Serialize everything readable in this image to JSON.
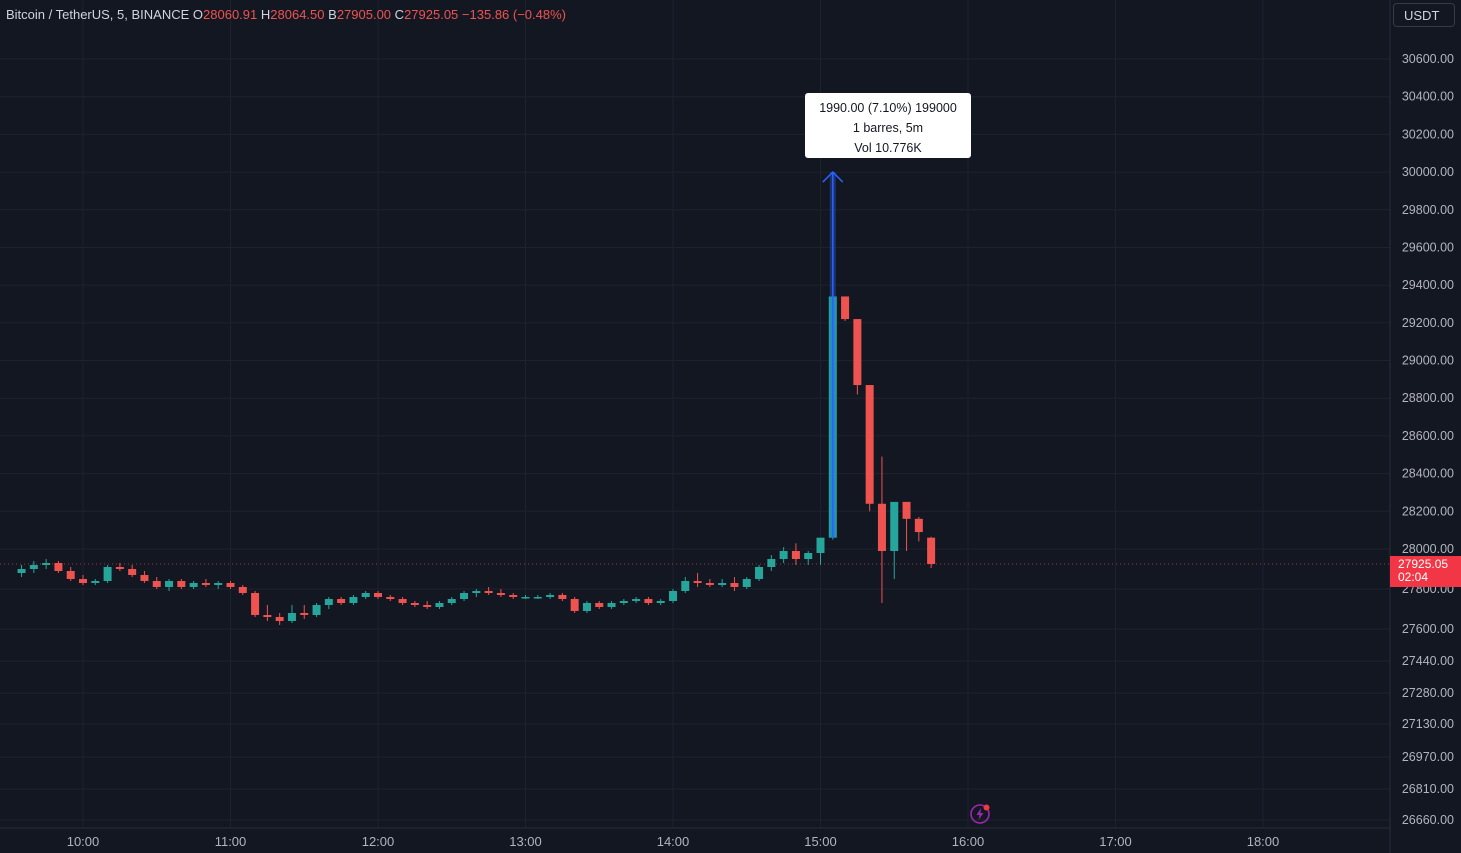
{
  "legend": {
    "symbol": "Bitcoin / TetherUS, 5, BINANCE",
    "o_label": "O",
    "o_value": "28060.91",
    "h_label": "H",
    "h_value": "28064.50",
    "b_label": "B",
    "b_value": "27905.00",
    "c_label": "C",
    "c_value": "27925.05",
    "change": "−135.86 (−0.48%)"
  },
  "currency": "USDT",
  "measure": {
    "line1": "1990.00 (7.10%) 199000",
    "line2": "1 barres, 5m",
    "line3": "Vol 10.776K"
  },
  "last_price": {
    "price": "27925.05",
    "countdown": "02:04"
  },
  "colors": {
    "up": "#26a69a",
    "down": "#ef5350",
    "measure": "#2962ff",
    "badge": "#f23645",
    "bg": "#131722",
    "grid": "#1e222d"
  },
  "icons": {
    "bolt": "lightning-bolt-icon"
  },
  "chart_data": {
    "type": "candlestick",
    "y_ticks": [
      "30600.00",
      "30400.00",
      "30200.00",
      "30000.00",
      "29800.00",
      "29600.00",
      "29400.00",
      "29200.00",
      "29000.00",
      "28800.00",
      "28600.00",
      "28400.00",
      "28200.00",
      "28000.00",
      "27800.00",
      "27600.00",
      "27440.00",
      "27280.00",
      "27130.00",
      "26970.00",
      "26810.00",
      "26660.00"
    ],
    "x_ticks": [
      "10:00",
      "11:00",
      "12:00",
      "13:00",
      "14:00",
      "15:00",
      "16:00",
      "17:00",
      "18:00"
    ],
    "grid": true,
    "candles": [
      [
        27880,
        27920,
        27860,
        27900
      ],
      [
        27900,
        27940,
        27880,
        27920
      ],
      [
        27920,
        27950,
        27900,
        27930
      ],
      [
        27930,
        27940,
        27880,
        27890
      ],
      [
        27890,
        27910,
        27840,
        27850
      ],
      [
        27850,
        27870,
        27820,
        27830
      ],
      [
        27830,
        27850,
        27820,
        27840
      ],
      [
        27840,
        27920,
        27830,
        27910
      ],
      [
        27910,
        27930,
        27890,
        27900
      ],
      [
        27900,
        27920,
        27860,
        27870
      ],
      [
        27870,
        27890,
        27830,
        27840
      ],
      [
        27840,
        27860,
        27800,
        27810
      ],
      [
        27810,
        27850,
        27790,
        27840
      ],
      [
        27840,
        27850,
        27800,
        27810
      ],
      [
        27810,
        27840,
        27800,
        27830
      ],
      [
        27830,
        27850,
        27810,
        27820
      ],
      [
        27820,
        27840,
        27800,
        27830
      ],
      [
        27830,
        27840,
        27800,
        27810
      ],
      [
        27810,
        27820,
        27770,
        27780
      ],
      [
        27780,
        27790,
        27660,
        27670
      ],
      [
        27670,
        27720,
        27640,
        27660
      ],
      [
        27660,
        27680,
        27620,
        27640
      ],
      [
        27640,
        27720,
        27630,
        27680
      ],
      [
        27680,
        27720,
        27650,
        27670
      ],
      [
        27670,
        27730,
        27660,
        27720
      ],
      [
        27720,
        27760,
        27700,
        27750
      ],
      [
        27750,
        27760,
        27720,
        27730
      ],
      [
        27730,
        27770,
        27720,
        27760
      ],
      [
        27760,
        27790,
        27750,
        27780
      ],
      [
        27780,
        27790,
        27750,
        27760
      ],
      [
        27760,
        27770,
        27740,
        27750
      ],
      [
        27750,
        27760,
        27720,
        27730
      ],
      [
        27730,
        27740,
        27710,
        27720
      ],
      [
        27720,
        27740,
        27700,
        27710
      ],
      [
        27710,
        27740,
        27700,
        27730
      ],
      [
        27730,
        27760,
        27720,
        27750
      ],
      [
        27750,
        27790,
        27740,
        27780
      ],
      [
        27780,
        27800,
        27760,
        27790
      ],
      [
        27790,
        27810,
        27770,
        27780
      ],
      [
        27780,
        27800,
        27760,
        27770
      ],
      [
        27770,
        27780,
        27750,
        27760
      ],
      [
        27760,
        27770,
        27750,
        27760
      ],
      [
        27760,
        27770,
        27750,
        27760
      ],
      [
        27760,
        27780,
        27750,
        27770
      ],
      [
        27770,
        27780,
        27740,
        27750
      ],
      [
        27750,
        27760,
        27680,
        27690
      ],
      [
        27690,
        27740,
        27680,
        27730
      ],
      [
        27730,
        27740,
        27700,
        27710
      ],
      [
        27710,
        27740,
        27700,
        27730
      ],
      [
        27730,
        27750,
        27720,
        27740
      ],
      [
        27740,
        27760,
        27730,
        27750
      ],
      [
        27750,
        27760,
        27720,
        27730
      ],
      [
        27730,
        27750,
        27720,
        27740
      ],
      [
        27740,
        27800,
        27730,
        27790
      ],
      [
        27790,
        27860,
        27780,
        27840
      ],
      [
        27840,
        27880,
        27810,
        27830
      ],
      [
        27830,
        27850,
        27810,
        27820
      ],
      [
        27820,
        27850,
        27810,
        27830
      ],
      [
        27830,
        27860,
        27790,
        27810
      ],
      [
        27810,
        27860,
        27800,
        27850
      ],
      [
        27850,
        27920,
        27840,
        27910
      ],
      [
        27910,
        27970,
        27890,
        27950
      ],
      [
        27950,
        28010,
        27930,
        27990
      ],
      [
        27990,
        28030,
        27920,
        27950
      ],
      [
        27950,
        27990,
        27920,
        27980
      ],
      [
        27980,
        28060,
        27920,
        28060
      ],
      [
        28060,
        29350,
        28050,
        29340
      ],
      [
        29340,
        29340,
        29210,
        29220
      ],
      [
        29220,
        29220,
        28820,
        28870
      ],
      [
        28870,
        28870,
        28200,
        28240
      ],
      [
        28240,
        28490,
        27730,
        27990
      ],
      [
        27990,
        28240,
        27850,
        28250
      ],
      [
        28250,
        28250,
        27990,
        28160
      ],
      [
        28160,
        28170,
        28040,
        28090
      ],
      [
        28060,
        28065,
        27905,
        27925
      ]
    ]
  }
}
